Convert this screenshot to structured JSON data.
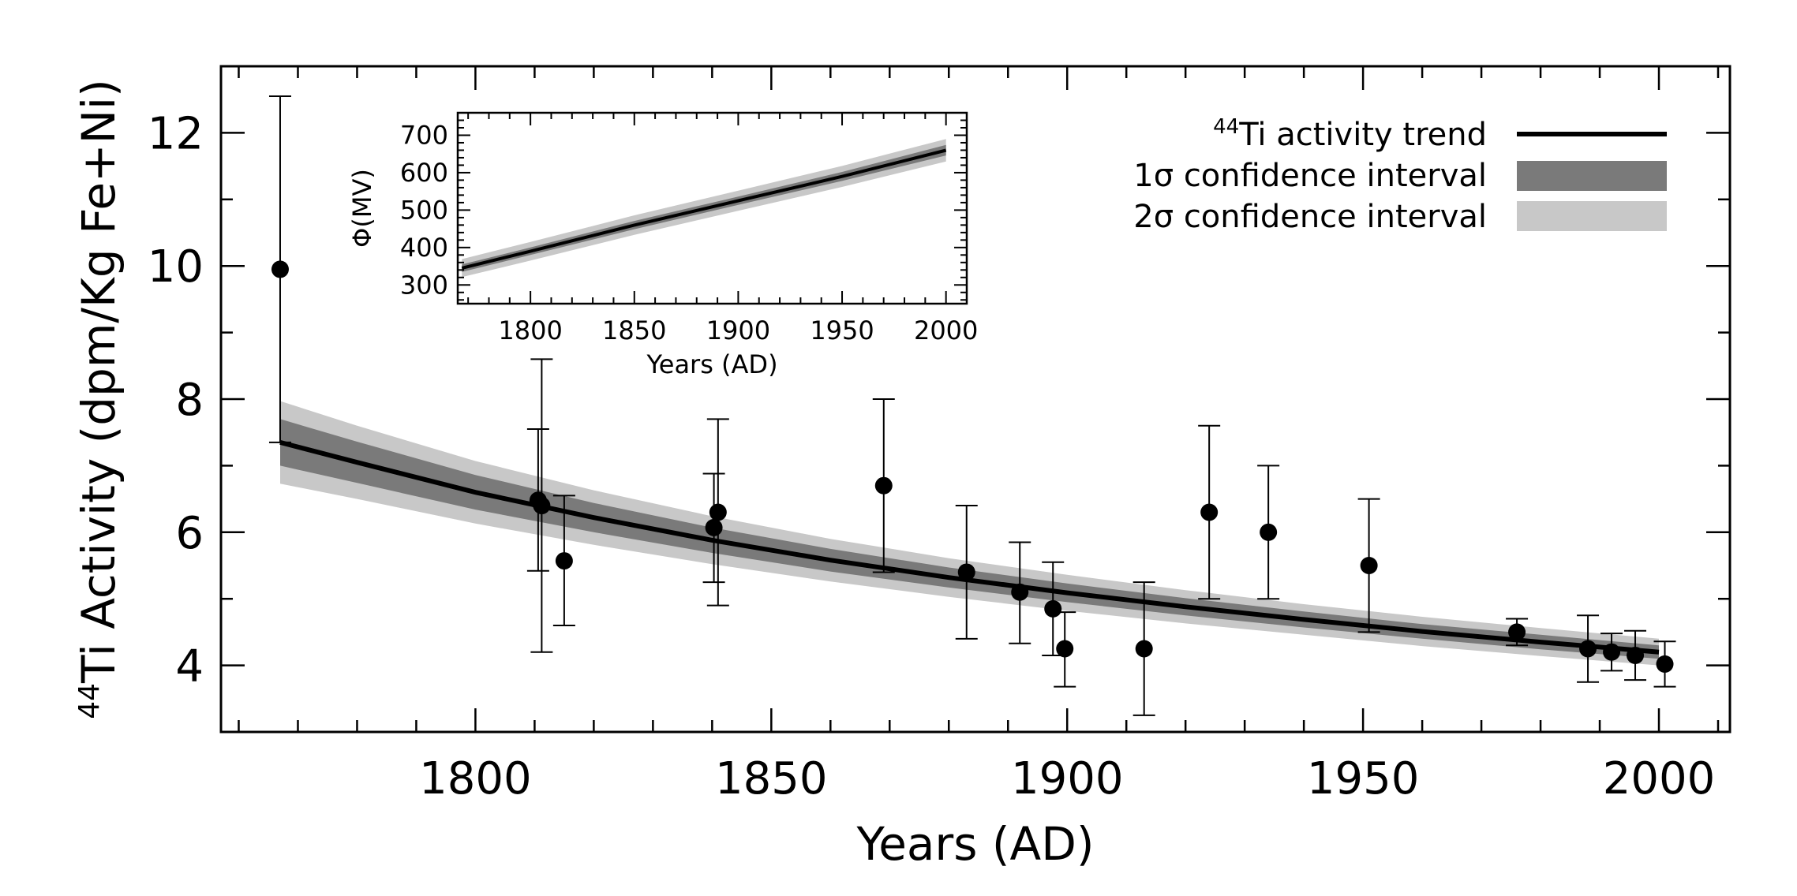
{
  "chart_data": [
    {
      "id": "main",
      "type": "scatter",
      "xlabel": "Years (AD)",
      "ylabel": {
        "sup": "44",
        "text": "Ti Activity (dpm/Kg Fe+Ni)"
      },
      "xlim": [
        1757,
        2012
      ],
      "ylim": [
        3,
        13
      ],
      "xticks": [
        1800,
        1850,
        1900,
        1950,
        2000
      ],
      "yticks": [
        4,
        6,
        8,
        10,
        12
      ],
      "xtick_labels": [
        "1800",
        "1850",
        "1900",
        "1950",
        "2000"
      ],
      "ytick_labels": [
        "4",
        "6",
        "8",
        "10",
        "12"
      ],
      "points": [
        {
          "x": 1767,
          "y": 9.95,
          "lo": 7.35,
          "hi": 12.55
        },
        {
          "x": 1810.6,
          "y": 6.48,
          "lo": 5.42,
          "hi": 7.55
        },
        {
          "x": 1811.2,
          "y": 6.4,
          "lo": 4.2,
          "hi": 8.6
        },
        {
          "x": 1815,
          "y": 5.57,
          "lo": 4.6,
          "hi": 6.55
        },
        {
          "x": 1840.3,
          "y": 6.07,
          "lo": 5.25,
          "hi": 6.88
        },
        {
          "x": 1841,
          "y": 6.3,
          "lo": 4.9,
          "hi": 7.7
        },
        {
          "x": 1869,
          "y": 6.7,
          "lo": 5.4,
          "hi": 8.0
        },
        {
          "x": 1883,
          "y": 5.4,
          "lo": 4.4,
          "hi": 6.4
        },
        {
          "x": 1892,
          "y": 5.1,
          "lo": 4.33,
          "hi": 5.85
        },
        {
          "x": 1897.6,
          "y": 4.85,
          "lo": 4.15,
          "hi": 5.55
        },
        {
          "x": 1899.6,
          "y": 4.25,
          "lo": 3.68,
          "hi": 4.8
        },
        {
          "x": 1913,
          "y": 4.25,
          "lo": 3.25,
          "hi": 5.25
        },
        {
          "x": 1924,
          "y": 6.3,
          "lo": 5.0,
          "hi": 7.6
        },
        {
          "x": 1934,
          "y": 6.0,
          "lo": 5.0,
          "hi": 7.0
        },
        {
          "x": 1951,
          "y": 5.5,
          "lo": 4.5,
          "hi": 6.5
        },
        {
          "x": 1976,
          "y": 4.5,
          "lo": 4.3,
          "hi": 4.7
        },
        {
          "x": 1988,
          "y": 4.25,
          "lo": 3.75,
          "hi": 4.75
        },
        {
          "x": 1992,
          "y": 4.2,
          "lo": 3.92,
          "hi": 4.48
        },
        {
          "x": 1996,
          "y": 4.15,
          "lo": 3.78,
          "hi": 4.52
        },
        {
          "x": 2001,
          "y": 4.02,
          "lo": 3.68,
          "hi": 4.36
        }
      ],
      "trend": {
        "x": [
          1767,
          1780,
          1800,
          1820,
          1840,
          1860,
          1880,
          1900,
          1920,
          1940,
          1960,
          1980,
          2000
        ],
        "y": [
          7.35,
          7.05,
          6.6,
          6.22,
          5.88,
          5.58,
          5.32,
          5.09,
          4.88,
          4.69,
          4.51,
          4.35,
          4.2
        ],
        "sigma1": [
          0.35,
          0.31,
          0.26,
          0.22,
          0.19,
          0.17,
          0.15,
          0.14,
          0.13,
          0.12,
          0.11,
          0.11,
          0.1
        ],
        "sigma2": [
          0.62,
          0.55,
          0.47,
          0.41,
          0.36,
          0.32,
          0.29,
          0.27,
          0.25,
          0.23,
          0.22,
          0.21,
          0.2
        ]
      },
      "legend": {
        "placement": "top-right",
        "entries": [
          {
            "sup": "44",
            "label": "Ti activity trend",
            "kind": "line"
          },
          {
            "label": "1σ confidence interval",
            "kind": "band1"
          },
          {
            "label": "2σ confidence interval",
            "kind": "band2"
          }
        ]
      },
      "colors": {
        "line": "#000000",
        "band1": "#7a7a7a",
        "band2": "#c8c8c8",
        "marker": "#000000"
      }
    },
    {
      "id": "inset",
      "type": "line",
      "placement": "top-left inset",
      "xlabel": "Years (AD)",
      "ylabel": "Φ(MV)",
      "xlim": [
        1765,
        2010
      ],
      "ylim": [
        250,
        760
      ],
      "xticks": [
        1800,
        1850,
        1900,
        1950,
        2000
      ],
      "yticks": [
        300,
        400,
        500,
        600,
        700
      ],
      "xtick_labels": [
        "1800",
        "1850",
        "1900",
        "1950",
        "2000"
      ],
      "ytick_labels": [
        "300",
        "400",
        "500",
        "600",
        "700"
      ],
      "series": [
        {
          "name": "phi",
          "x": [
            1767,
            1800,
            1850,
            1900,
            1950,
            2000
          ],
          "y": [
            345,
            390,
            460,
            525,
            590,
            660
          ],
          "sigma1": [
            10,
            10,
            11,
            11,
            12,
            14
          ],
          "sigma2": [
            24,
            25,
            26,
            27,
            28,
            30
          ]
        }
      ]
    }
  ]
}
